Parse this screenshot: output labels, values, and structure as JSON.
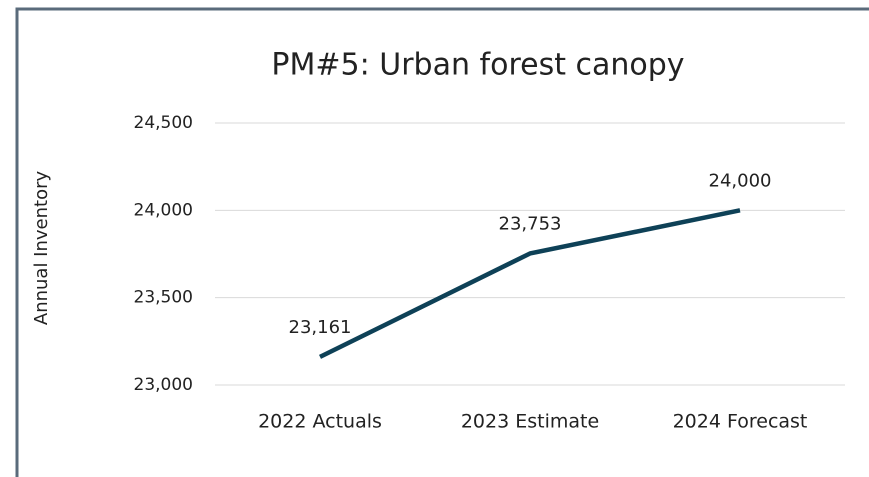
{
  "chart_data": {
    "type": "line",
    "title": "PM#5: Urban forest canopy",
    "y_label": "Annual Inventory",
    "categories": [
      "2022 Actuals",
      "2023 Estimate",
      "2024 Forecast"
    ],
    "series": [
      {
        "name": "Annual Inventory",
        "color": "#0e4157",
        "values": [
          23161,
          23753,
          24000
        ],
        "value_labels": [
          "23,161",
          "23,753",
          "24,000"
        ]
      }
    ],
    "ylim": [
      23000,
      24500
    ],
    "yticks": [
      {
        "value": 23000,
        "label": "23,000"
      },
      {
        "value": 23500,
        "label": "23,500"
      },
      {
        "value": 24000,
        "label": "24,000"
      },
      {
        "value": 24500,
        "label": "24,500"
      }
    ],
    "grid": true
  }
}
